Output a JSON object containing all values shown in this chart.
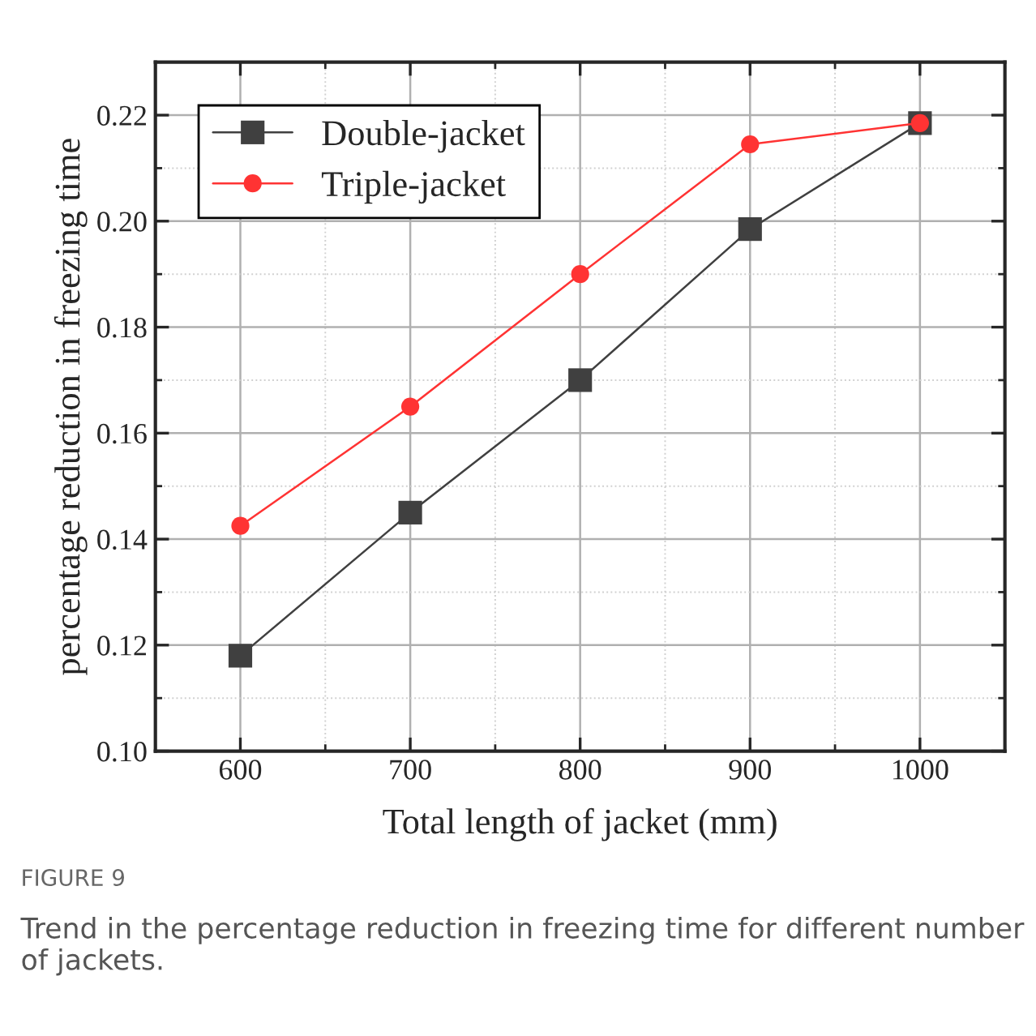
{
  "chart_data": {
    "type": "line",
    "xlabel": "Total length of jacket (mm)",
    "ylabel": "percentage reduction in freezing time",
    "x": [
      600,
      700,
      800,
      900,
      1000
    ],
    "series": [
      {
        "name": "Double-jacket",
        "color": "#404040",
        "marker": "square",
        "values": [
          0.118,
          0.145,
          0.17,
          0.1985,
          0.2185
        ]
      },
      {
        "name": "Triple-jacket",
        "color": "#ff3333",
        "marker": "circle",
        "values": [
          0.1425,
          0.165,
          0.19,
          0.2145,
          0.2185
        ]
      }
    ],
    "xlim": [
      550,
      1050
    ],
    "xticks": [
      600,
      700,
      800,
      900,
      1000
    ],
    "ylim": [
      0.1,
      0.23
    ],
    "yticks": [
      {
        "value": 0.1,
        "label": "0.10"
      },
      {
        "value": 0.12,
        "label": "0.12"
      },
      {
        "value": 0.14,
        "label": "0.14"
      },
      {
        "value": 0.16,
        "label": "0.16"
      },
      {
        "value": 0.18,
        "label": "0.18"
      },
      {
        "value": 0.2,
        "label": "0.20"
      },
      {
        "value": 0.22,
        "label": "0.22"
      }
    ],
    "grid": true,
    "legend": "top left",
    "line_style": "solid",
    "annotations": [
      "FIGURE 9",
      "Trend in the percentage reduction in freezing time for different number of jackets."
    ]
  }
}
